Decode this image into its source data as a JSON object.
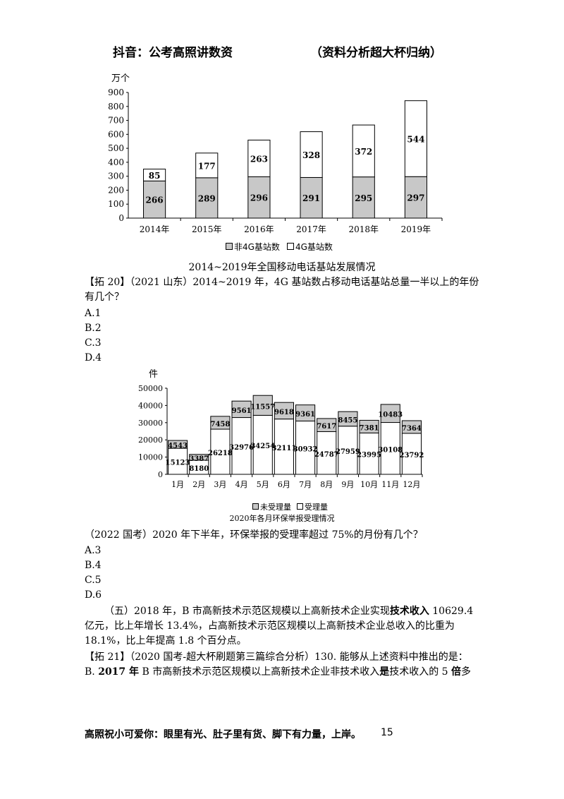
{
  "header": {
    "left": "抖音：公考高照讲数资",
    "right": "（资料分析超大杯归纳）"
  },
  "chart1": {
    "unit": "万个",
    "title": "2014~2019年全国移动电话基站发展情况",
    "legend": [
      "非4G基站数",
      "4G基站数"
    ],
    "colors": {
      "non4g": "#c8c8c8",
      "g4": "#ffffff"
    }
  },
  "chart2": {
    "unit": "件",
    "title": "2020年各月环保举报受理情况",
    "legend": [
      "未受理量",
      "受理量"
    ],
    "colors": {
      "unaccepted": "#c8c8c8",
      "accepted": "#ffffff"
    }
  },
  "chart_data": [
    {
      "type": "bar",
      "stacked": true,
      "categories": [
        "2014年",
        "2015年",
        "2016年",
        "2017年",
        "2018年",
        "2019年"
      ],
      "series": [
        {
          "name": "非4G基站数",
          "values": [
            266,
            289,
            296,
            291,
            295,
            297
          ]
        },
        {
          "name": "4G基站数",
          "values": [
            85,
            177,
            263,
            328,
            372,
            544
          ]
        }
      ],
      "yticks": [
        "0",
        "100",
        "200",
        "300",
        "400",
        "500",
        "600",
        "700",
        "800",
        "900"
      ],
      "ylim": [
        0,
        900
      ],
      "ylabel": "万个",
      "title": "2014~2019年全国移动电话基站发展情况",
      "legend_position": "bottom"
    },
    {
      "type": "bar",
      "stacked": true,
      "categories": [
        "1月",
        "2月",
        "3月",
        "4月",
        "5月",
        "6月",
        "7月",
        "8月",
        "9月",
        "10月",
        "11月",
        "12月"
      ],
      "series": [
        {
          "name": "受理量",
          "values": [
            15123,
            8180,
            26218,
            32976,
            34254,
            32111,
            30932,
            24787,
            27959,
            23995,
            30108,
            23792
          ]
        },
        {
          "name": "未受理量",
          "values": [
            4543,
            3387,
            7458,
            9561,
            11557,
            9618,
            9361,
            7617,
            8455,
            7381,
            10483,
            7364
          ]
        }
      ],
      "yticks": [
        "0",
        "10000",
        "20000",
        "30000",
        "40000",
        "50000"
      ],
      "ylim": [
        0,
        50000
      ],
      "ylabel": "件",
      "title": "2020年各月环保举报受理情况",
      "legend_position": "bottom"
    }
  ],
  "q1": {
    "stem": "【拓 20】（2021 山东）2014~2019 年，4G 基站数占移动电话基站总量一半以上的年份有几个？",
    "options": [
      "A.1",
      "B.2",
      "C.3",
      "D.4"
    ]
  },
  "q2": {
    "stem": "（2022 国考）2020 年下半年，环保举报的受理率超过 75%的月份有几个？",
    "options": [
      "A.3",
      "B.4",
      "C.5",
      "D.6"
    ]
  },
  "passage": {
    "part1": "（五）2018 年，B 市高新技术示范区规模以上高新技术企业实现",
    "bold1": "技术收入",
    "part2": " 10629.4 亿元，比上年增长 13.4%，占高新技术示范区规模以上高新技术企业总收入的比重为 18.1%，比上年提高 1.8 个百分点。"
  },
  "q3": {
    "stem": "【拓 21】（2020 国考-超大杯刷题第三篇综合分析）130. 能够从上述资料中推出的是：",
    "optB_prefix": "B. ",
    "optB_bold1": "2017 年",
    "optB_mid": " B 市高新技术示范区规模以上高新技术企业非技术收入",
    "optB_bold2": "是",
    "optB_mid2": "技术收入的 5 ",
    "optB_bold3": "倍",
    "optB_end": "多"
  },
  "footer": {
    "text": "高照祝小可爱你：眼里有光、肚子里有货、脚下有力量，上岸。",
    "page": "15"
  }
}
